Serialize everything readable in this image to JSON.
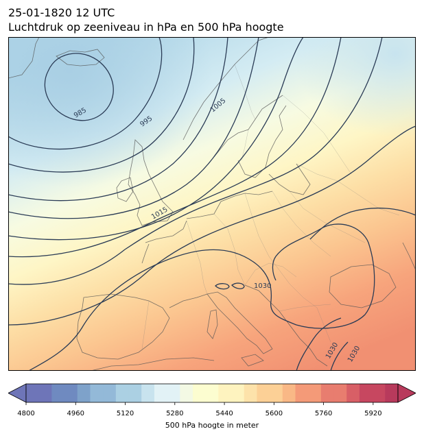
{
  "header": {
    "date_line": "25-01-1820 12 UTC",
    "title_line": "Luchtdruk op zeeniveau in hPa en 500 hPa hoogte"
  },
  "map": {
    "region": "Europe and North Atlantic",
    "shading_variable": "500 hPa geopotential height (m)",
    "contour_variable": "mean sea level pressure (hPa)",
    "isobar_labels": [
      "985",
      "995",
      "1005",
      "1015",
      "1030",
      "1030",
      "1030"
    ],
    "contour_color": "#2a3b55",
    "coastline_color": "#555555"
  },
  "colorbar": {
    "label": "500 hPa hoogte in meter",
    "min": 4800,
    "max": 5960,
    "step": 40,
    "extend": "both",
    "ticks": [
      "4800",
      "4960",
      "5120",
      "5280",
      "5440",
      "5600",
      "5760",
      "5920"
    ],
    "tick_values": [
      4800,
      4960,
      5120,
      5280,
      5440,
      5600,
      5760,
      5920
    ],
    "colormap": "RdYlBu_r (alpha 0.7)",
    "palette": [
      "#6e75b8",
      "#6f8ac0",
      "#7ea2ca",
      "#93b9d8",
      "#abd0e3",
      "#c8e3ee",
      "#e2f2f6",
      "#f3f9e4",
      "#fcfdd0",
      "#fef3bf",
      "#fde2aa",
      "#fcd096",
      "#f9b886",
      "#f49a78",
      "#e87d6f",
      "#d85f66",
      "#c74760",
      "#b83a5c"
    ]
  }
}
